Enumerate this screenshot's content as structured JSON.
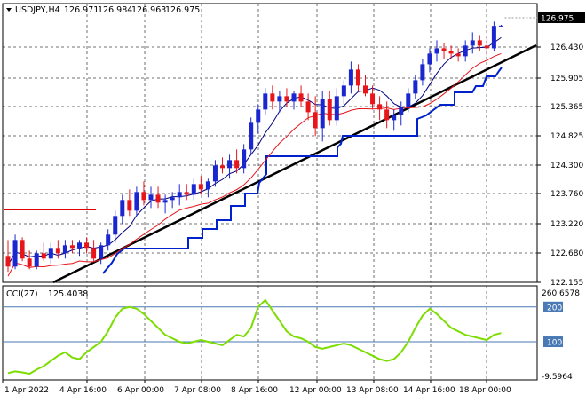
{
  "chart_data": [
    {
      "type": "candlestick",
      "symbol": "USDJPY,H4",
      "ohlc_text": [
        "126.971",
        "126.984",
        "126.963",
        "126.975"
      ],
      "current_price_label": "126.975",
      "y_ticks": [
        "126.430",
        "125.905",
        "125.365",
        "124.825",
        "124.300",
        "123.760",
        "123.220",
        "122.680",
        "122.155"
      ],
      "ylim": [
        122.155,
        127.39
      ],
      "x_labels": [
        "1 Apr 2022",
        "4 Apr 16:00",
        "6 Apr 00:00",
        "7 Apr 08:00",
        "8 Apr 16:00",
        "12 Apr 00:00",
        "13 Apr 08:00",
        "14 Apr 16:00",
        "18 Apr 00:00"
      ],
      "candles": [
        [
          122.65,
          122.95,
          122.35,
          122.45
        ],
        [
          122.45,
          123.05,
          122.4,
          122.95
        ],
        [
          122.95,
          123.0,
          122.55,
          122.6
        ],
        [
          122.6,
          122.75,
          122.4,
          122.45
        ],
        [
          122.45,
          122.75,
          122.4,
          122.7
        ],
        [
          122.7,
          122.9,
          122.55,
          122.6
        ],
        [
          122.6,
          122.9,
          122.5,
          122.8
        ],
        [
          122.8,
          122.95,
          122.6,
          122.7
        ],
        [
          122.7,
          122.95,
          122.6,
          122.85
        ],
        [
          122.85,
          122.95,
          122.7,
          122.8
        ],
        [
          122.8,
          122.95,
          122.65,
          122.9
        ],
        [
          122.9,
          123.0,
          122.7,
          122.8
        ],
        [
          122.8,
          122.95,
          122.55,
          122.6
        ],
        [
          122.6,
          122.9,
          122.5,
          122.85
        ],
        [
          122.85,
          123.15,
          122.75,
          123.05
        ],
        [
          123.05,
          123.5,
          122.9,
          123.4
        ],
        [
          123.4,
          123.8,
          123.25,
          123.7
        ],
        [
          123.7,
          123.9,
          123.4,
          123.5
        ],
        [
          123.5,
          123.95,
          123.4,
          123.85
        ],
        [
          123.85,
          124.05,
          123.6,
          123.7
        ],
        [
          123.7,
          123.95,
          123.55,
          123.8
        ],
        [
          123.8,
          123.95,
          123.55,
          123.65
        ],
        [
          123.65,
          123.8,
          123.45,
          123.7
        ],
        [
          123.7,
          123.85,
          123.55,
          123.75
        ],
        [
          123.75,
          124.0,
          123.6,
          123.85
        ],
        [
          123.85,
          124.0,
          123.7,
          123.8
        ],
        [
          123.8,
          124.1,
          123.7,
          124.0
        ],
        [
          124.0,
          124.15,
          123.8,
          123.9
        ],
        [
          123.9,
          124.1,
          123.75,
          124.05
        ],
        [
          124.05,
          124.45,
          123.95,
          124.35
        ],
        [
          124.35,
          124.5,
          124.2,
          124.3
        ],
        [
          124.3,
          124.55,
          124.1,
          124.45
        ],
        [
          124.45,
          124.65,
          124.2,
          124.3
        ],
        [
          124.3,
          124.75,
          124.2,
          124.65
        ],
        [
          124.65,
          125.25,
          124.55,
          125.15
        ],
        [
          125.15,
          125.5,
          124.95,
          125.4
        ],
        [
          125.4,
          125.8,
          125.3,
          125.7
        ],
        [
          125.7,
          125.85,
          125.4,
          125.55
        ],
        [
          125.55,
          125.75,
          125.35,
          125.65
        ],
        [
          125.65,
          125.8,
          125.45,
          125.55
        ],
        [
          125.55,
          125.75,
          125.4,
          125.7
        ],
        [
          125.7,
          125.85,
          125.45,
          125.55
        ],
        [
          125.55,
          125.7,
          125.2,
          125.35
        ],
        [
          125.35,
          125.65,
          124.9,
          125.05
        ],
        [
          125.05,
          125.75,
          124.8,
          125.6
        ],
        [
          125.6,
          125.75,
          125.1,
          125.2
        ],
        [
          125.2,
          125.8,
          125.1,
          125.65
        ],
        [
          125.65,
          125.95,
          125.5,
          125.85
        ],
        [
          125.85,
          126.3,
          125.7,
          126.15
        ],
        [
          126.15,
          126.25,
          125.75,
          125.85
        ],
        [
          125.85,
          126.05,
          125.65,
          125.7
        ],
        [
          125.7,
          125.85,
          125.4,
          125.5
        ],
        [
          125.5,
          125.65,
          125.2,
          125.4
        ],
        [
          125.4,
          125.55,
          125.05,
          125.2
        ],
        [
          125.2,
          125.4,
          125.0,
          125.3
        ],
        [
          125.3,
          125.55,
          125.1,
          125.45
        ],
        [
          125.45,
          125.8,
          125.35,
          125.7
        ],
        [
          125.7,
          126.05,
          125.6,
          125.95
        ],
        [
          125.95,
          126.35,
          125.85,
          126.25
        ],
        [
          126.25,
          126.55,
          126.1,
          126.45
        ],
        [
          126.45,
          126.7,
          126.3,
          126.55
        ],
        [
          126.55,
          126.65,
          126.35,
          126.5
        ],
        [
          126.5,
          126.6,
          126.35,
          126.45
        ],
        [
          126.45,
          126.55,
          126.3,
          126.4
        ],
        [
          126.4,
          126.7,
          126.3,
          126.6
        ],
        [
          126.6,
          126.85,
          126.45,
          126.7
        ],
        [
          126.7,
          126.8,
          126.5,
          126.6
        ],
        [
          126.6,
          126.75,
          126.4,
          126.55
        ],
        [
          126.55,
          127.05,
          126.5,
          126.97
        ],
        [
          126.97,
          126.99,
          126.96,
          126.975
        ]
      ],
      "support_level": 123.45,
      "trend_line": [
        [
          0,
          122.1
        ],
        [
          69,
          126.5
        ]
      ],
      "cci": {
        "label": "CCI(27)",
        "value_label": "125.4038",
        "ylim": [
          -9.5964,
          260.6578
        ],
        "top_label": "260.6578",
        "bottom_label": "-9.5964",
        "levels": [
          200,
          100
        ],
        "level_labels": [
          "200",
          "100"
        ],
        "color": "#7cdd00",
        "values": [
          10,
          15,
          12,
          8,
          20,
          30,
          45,
          60,
          70,
          55,
          50,
          70,
          85,
          100,
          130,
          170,
          195,
          200,
          195,
          180,
          160,
          140,
          120,
          110,
          100,
          95,
          100,
          105,
          100,
          95,
          90,
          105,
          120,
          115,
          140,
          200,
          220,
          190,
          160,
          130,
          115,
          110,
          100,
          85,
          80,
          85,
          90,
          95,
          90,
          80,
          70,
          60,
          50,
          45,
          50,
          70,
          100,
          140,
          175,
          195,
          180,
          160,
          140,
          130,
          120,
          115,
          110,
          105,
          120,
          125
        ]
      },
      "colors": {
        "bull": "#1a27d0",
        "bear": "#e8151b",
        "ma_black": "#000080",
        "ma_red": "#e8151b",
        "stair": "#0022cc",
        "trend": "#000000",
        "support": "#e00000"
      }
    }
  ]
}
